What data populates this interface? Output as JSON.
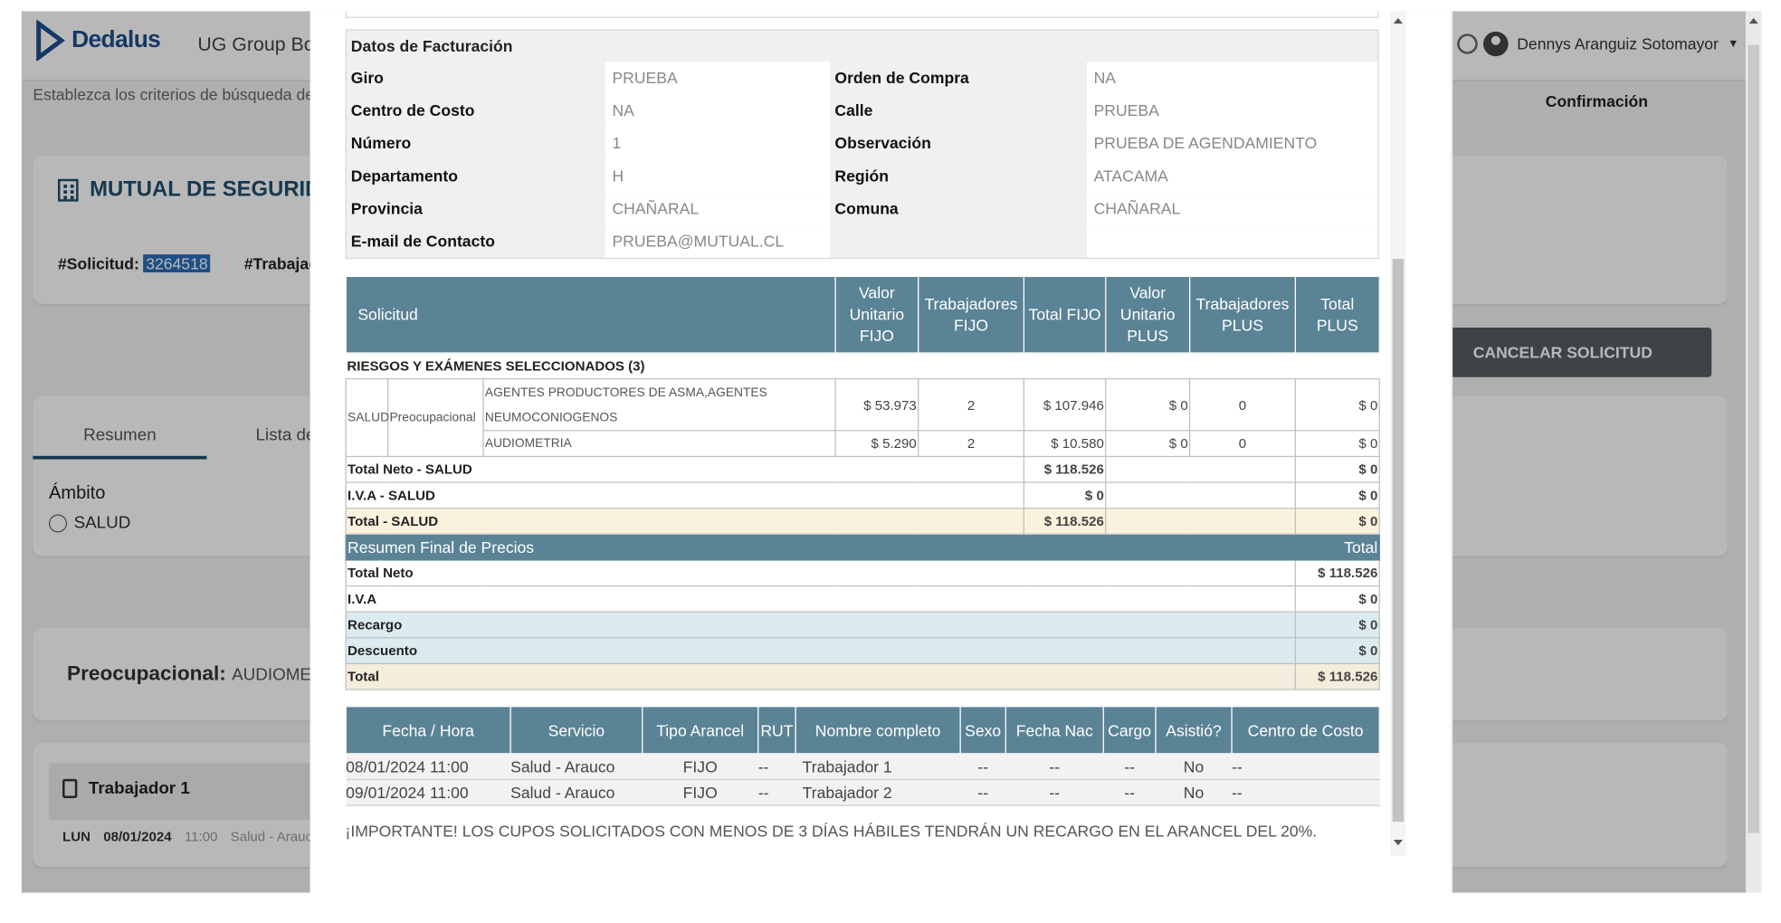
{
  "header": {
    "logo_text": "Dedalus",
    "app_name": "UG Group Boo",
    "user_name": "Dennys Aranguiz Sotomayor"
  },
  "background": {
    "subtitle": "Establezca los criterios de búsqueda de",
    "confirm_label": "Confirmación",
    "company_title": "MUTUAL DE SEGURIDAD",
    "solicitud_label": "#Solicitud:",
    "solicitud_number": "3264518",
    "trabajador_label": "#Trabajad",
    "cancel_button": "CANCELAR SOLICITUD",
    "tabs": [
      "Resumen",
      "Lista de P"
    ],
    "ambito_label": "Ámbito",
    "ambito_option": "SALUD",
    "preocupacional_label": "Preocupacional:",
    "preocupacional_value": "AUDIOMETRIA",
    "worker_name": "Trabajador 1",
    "worker_day": "LUN",
    "worker_date": "08/01/2024",
    "worker_time": "11:00",
    "worker_service": "Salud - Arauc"
  },
  "billing": {
    "title": "Datos de Facturación",
    "rows": [
      {
        "k1": "Giro",
        "v1": "PRUEBA",
        "k2": "Orden de Compra",
        "v2": "NA"
      },
      {
        "k1": "Centro de Costo",
        "v1": "NA",
        "k2": "Calle",
        "v2": "PRUEBA"
      },
      {
        "k1": "Número",
        "v1": "1",
        "k2": "Observación",
        "v2": "PRUEBA DE AGENDAMIENTO"
      },
      {
        "k1": "Departamento",
        "v1": "H",
        "k2": "Región",
        "v2": "ATACAMA"
      },
      {
        "k1": "Provincia",
        "v1": "CHAÑARAL",
        "k2": "Comuna",
        "v2": "CHAÑARAL"
      },
      {
        "k1": "E-mail de Contacto",
        "v1": "PRUEBA@MUTUAL.CL",
        "k2": "",
        "v2": ""
      }
    ]
  },
  "prices": {
    "headers": [
      "Solicitud",
      "Valor Unitario FIJO",
      "Trabajadores FIJO",
      "Total FIJO",
      "Valor Unitario PLUS",
      "Trabajadores PLUS",
      "Total PLUS"
    ],
    "selected_label": "RIESGOS Y EXÁMENES SELECCIONADOS (3)",
    "area": "SALUD",
    "type": "Preocupacional",
    "items": [
      {
        "name": "AGENTES PRODUCTORES DE ASMA,AGENTES NEUMOCONIOGENOS",
        "vu_fijo": "$ 53.973",
        "trab_fijo": "2",
        "total_fijo": "$ 107.946",
        "vu_plus": "$ 0",
        "trab_plus": "0",
        "total_plus": "$ 0"
      },
      {
        "name": "AUDIOMETRIA",
        "vu_fijo": "$ 5.290",
        "trab_fijo": "2",
        "total_fijo": "$ 10.580",
        "vu_plus": "$ 0",
        "trab_plus": "0",
        "total_plus": "$ 0"
      }
    ],
    "subtotals": [
      {
        "label": "Total Neto - SALUD",
        "fijo": "$ 118.526",
        "plus": "$ 0"
      },
      {
        "label": "I.V.A - SALUD",
        "fijo": "$ 0",
        "plus": "$ 0"
      },
      {
        "label": "Total - SALUD",
        "fijo": "$ 118.526",
        "plus": "$ 0"
      }
    ],
    "summary_title": "Resumen Final de Precios",
    "summary_total_header": "Total",
    "summary": [
      {
        "label": "Total Neto",
        "value": "$ 118.526"
      },
      {
        "label": "I.V.A",
        "value": "$ 0"
      },
      {
        "label": "Recargo",
        "value": "$ 0"
      },
      {
        "label": "Descuento",
        "value": "$ 0"
      },
      {
        "label": "Total",
        "value": "$ 118.526"
      }
    ]
  },
  "schedule": {
    "headers": [
      "Fecha / Hora",
      "Servicio",
      "Tipo Arancel",
      "RUT",
      "Nombre completo",
      "Sexo",
      "Fecha Nac",
      "Cargo",
      "Asistió?",
      "Centro de Costo"
    ],
    "rows": [
      [
        "08/01/2024 11:00",
        "Salud - Arauco",
        "FIJO",
        "--",
        "Trabajador 1",
        "--",
        "--",
        "--",
        "No",
        "--"
      ],
      [
        "09/01/2024 11:00",
        "Salud - Arauco",
        "FIJO",
        "--",
        "Trabajador 2",
        "--",
        "--",
        "--",
        "No",
        "--"
      ]
    ]
  },
  "notice": "¡IMPORTANTE! LOS CUPOS SOLICITADOS CON MENOS DE 3 DÍAS HÁBILES TENDRÁN UN RECARGO EN EL ARANCEL DEL 20%."
}
